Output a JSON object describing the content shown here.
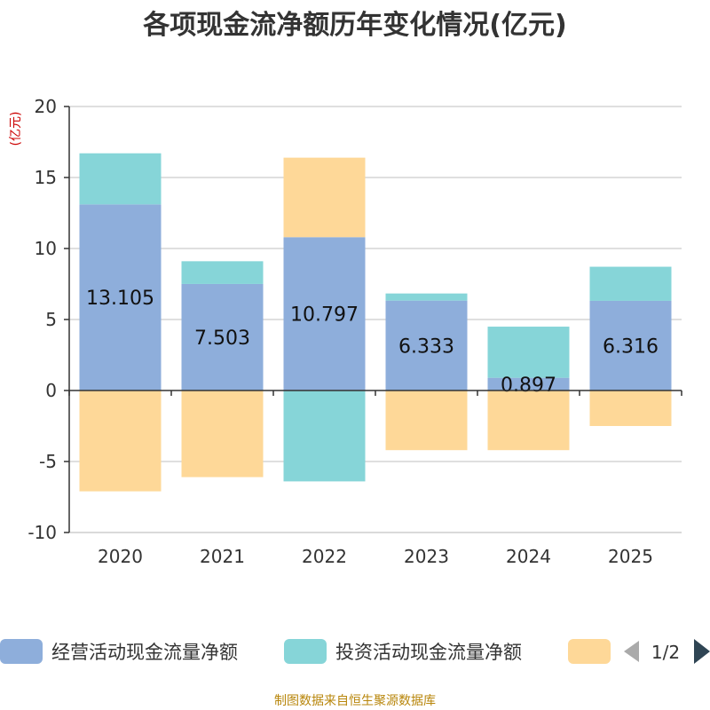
{
  "chart_data": {
    "type": "bar",
    "stacked": true,
    "title": "各项现金流净额历年变化情况(亿元)",
    "ylabel": "(亿元)",
    "xlabel": "",
    "ylim": [
      -10,
      20
    ],
    "yticks": [
      -10,
      -5,
      0,
      5,
      10,
      15,
      20
    ],
    "grid": true,
    "categories": [
      "2020",
      "2021",
      "2022",
      "2023",
      "2024",
      "2025"
    ],
    "series": [
      {
        "name": "经营活动现金流量净额",
        "color": "#8eaedb",
        "values": [
          13.105,
          7.503,
          10.797,
          6.333,
          0.897,
          6.316
        ],
        "labels": [
          "13.105",
          "7.503",
          "10.797",
          "6.333",
          "0.897",
          "6.316"
        ]
      },
      {
        "name": "投资活动现金流量净额",
        "color": "#86d5d8",
        "values": [
          3.6,
          1.6,
          -6.4,
          0.5,
          3.6,
          2.4
        ]
      },
      {
        "name": "",
        "color": "#fed898",
        "values": [
          -7.1,
          -6.1,
          5.6,
          -4.2,
          -4.2,
          -2.5
        ]
      }
    ],
    "legend": {
      "position": "bottom",
      "page": "1/2"
    },
    "source": "制图数据来自恒生聚源数据库"
  }
}
